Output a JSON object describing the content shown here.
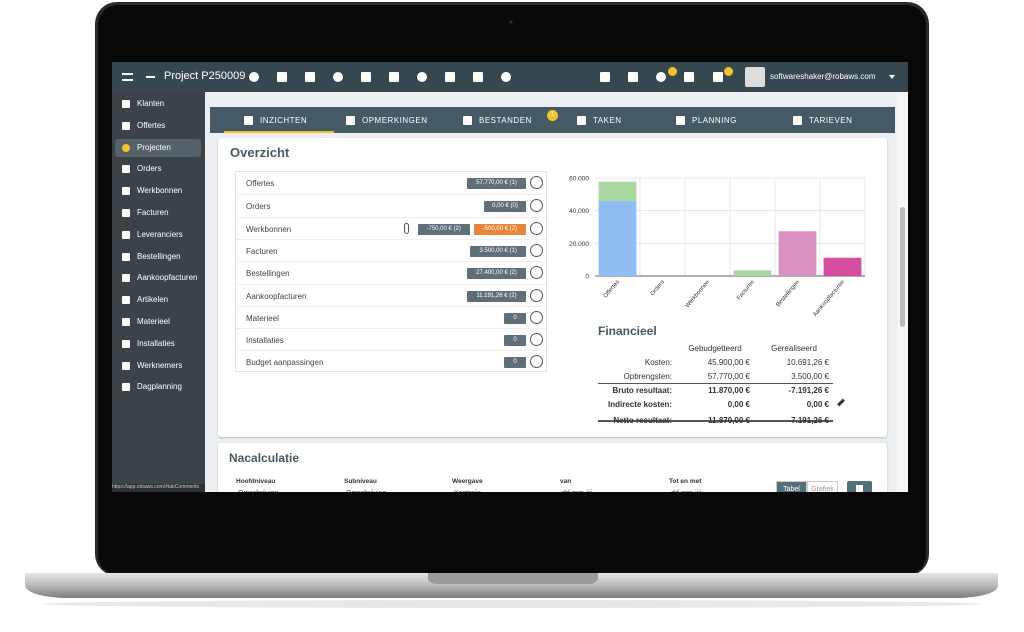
{
  "topbar": {
    "title": "Project P250009",
    "user": "softwareshaker@robaws.com"
  },
  "sidebar": {
    "items": [
      "Klanten",
      "Offertes",
      "Projecten",
      "Orders",
      "Werkbonnen",
      "Facturen",
      "Leveranciers",
      "Bestellingen",
      "Aankoopfacturen",
      "Artikelen",
      "Materieel",
      "Installaties",
      "Werknemers",
      "Dagplanning"
    ],
    "active": 2
  },
  "status_url": "https://app.robaws.com/#tabComments",
  "tabs": [
    {
      "label": "INZICHTEN"
    },
    {
      "label": "OPMERKINGEN"
    },
    {
      "label": "BESTANDEN",
      "badge": "1"
    },
    {
      "label": "TAKEN"
    },
    {
      "label": "PLANNING"
    },
    {
      "label": "TARIEVEN"
    }
  ],
  "overview": {
    "title": "Overzicht",
    "rows": [
      {
        "label": "Offertes",
        "amounts": [
          {
            "text": "57.770,00 € (1)",
            "color": "#5f6f78"
          }
        ]
      },
      {
        "label": "Orders",
        "amounts": [
          {
            "text": "0,00 € (0)",
            "color": "#5f6f78"
          }
        ]
      },
      {
        "label": "Werkbonnen",
        "amounts": [
          {
            "text": "-750,00 € (2)",
            "color": "#5f6f78"
          },
          {
            "text": "-500,00 € (2)",
            "color": "#e8833a"
          }
        ]
      },
      {
        "label": "Facturen",
        "amounts": [
          {
            "text": "3.500,00 € (1)",
            "color": "#5f6f78"
          }
        ]
      },
      {
        "label": "Bestellingen",
        "amounts": [
          {
            "text": "27.400,00 € (2)",
            "color": "#5f6f78"
          }
        ]
      },
      {
        "label": "Aankoopfacturen",
        "amounts": [
          {
            "text": "11.191,26 € (2)",
            "color": "#5f6f78"
          }
        ]
      },
      {
        "label": "Materieel",
        "amounts": [
          {
            "text": "0",
            "color": "#5f6f78"
          }
        ]
      },
      {
        "label": "Installaties",
        "amounts": [
          {
            "text": "0",
            "color": "#5f6f78"
          }
        ]
      },
      {
        "label": "Budget aanpassingen",
        "amounts": [
          {
            "text": "0",
            "color": "#5f6f78"
          }
        ]
      }
    ]
  },
  "chart_data": {
    "type": "stacked_bar",
    "categories": [
      "Offertes",
      "Orders",
      "Werkbonnen",
      "Facturen",
      "Bestellingen",
      "Aankoopfacturen"
    ],
    "series": [
      {
        "color": "#90bdf2",
        "values": [
          45900,
          null,
          null,
          null,
          null,
          null
        ]
      },
      {
        "color": "#a8d8a0",
        "values": [
          11870,
          null,
          null,
          3500,
          null,
          null
        ]
      },
      {
        "color": "#d893c2",
        "values": [
          null,
          null,
          null,
          null,
          27400,
          null
        ]
      },
      {
        "color": "#d64ea0",
        "values": [
          null,
          null,
          null,
          null,
          null,
          11191.26
        ]
      }
    ],
    "ylim": [
      0,
      60000
    ],
    "yticks": [
      0,
      {
        "value": 20000,
        "label": "20.000"
      },
      {
        "value": 40000,
        "label": "40.000"
      },
      {
        "value": 60000,
        "label": "60.000"
      }
    ],
    "grid": true
  },
  "financial": {
    "title": "Financieel",
    "columns": [
      "Gebudgetteerd",
      "Gerealiseerd"
    ],
    "rows": [
      {
        "label": "Kosten:",
        "values": [
          "45.900,00 €",
          "10.691,26 €"
        ]
      },
      {
        "label": "Opbrengsten:",
        "values": [
          "57.770,00 €",
          "3.500,00 €"
        ]
      },
      {
        "label": "Bruto resultaat:",
        "values": [
          "11.870,00 €",
          "-7.191,26 €"
        ]
      },
      {
        "label": "Indirecte kosten:",
        "values": [
          "0,00 €",
          "0,00 €"
        ]
      },
      {
        "label": "Netto resultaat:",
        "values": [
          "11.870,00 €",
          "-7.191,26 €"
        ]
      }
    ]
  },
  "nacalculatie": {
    "title": "Nacalculatie",
    "fields": [
      {
        "label": "Hoofdniveau",
        "value": "Omschrijving"
      },
      {
        "label": "Subniveau",
        "value": "Omschrijving"
      },
      {
        "label": "Weergave",
        "value": "Kostprijs"
      },
      {
        "label": "van",
        "value": "dd-mm-jjjj"
      },
      {
        "label": "Tot en met",
        "value": "dd-mm-jjjj"
      }
    ],
    "toggle": [
      "Tabel",
      "Grafiek"
    ]
  }
}
